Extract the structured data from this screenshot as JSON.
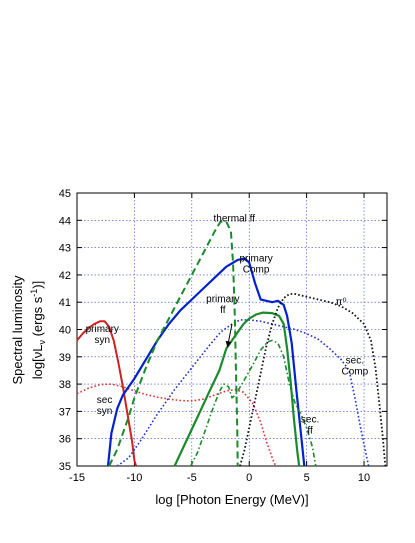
{
  "chart_data": {
    "type": "line",
    "title": "",
    "xlabel": "log [Photon Energy (MeV)]",
    "ylabel_line1": "Spectral luminosity",
    "ylabel_line2": "log[νL",
    "ylabel_sub": "ν",
    "ylabel_tail": " (ergs s",
    "ylabel_sup": "-1",
    "ylabel_end": ")]",
    "xlim": [
      -15,
      12
    ],
    "ylim": [
      35,
      45
    ],
    "xticks": [
      "-15",
      "-10",
      "-5",
      "0",
      "5",
      "10"
    ],
    "xtick_values": [
      -15,
      -10,
      -5,
      0,
      5,
      10
    ],
    "yticks": [
      "35",
      "36",
      "37",
      "38",
      "39",
      "40",
      "41",
      "42",
      "43",
      "44",
      "45"
    ],
    "ytick_values": [
      35,
      36,
      37,
      38,
      39,
      40,
      41,
      42,
      43,
      44,
      45
    ],
    "grid": true,
    "legend": "none",
    "colors": {
      "primary_syn": "#cc2222",
      "sec_syn": "#dd3333",
      "primary_comp": "#0022cc",
      "sec_comp": "#2233cc",
      "thermal_ff": "#1a8a2a",
      "primary_ff": "#1a8a2a",
      "sec_ff": "#1a8a2a",
      "pi0": "#111111"
    },
    "series": [
      {
        "key": "primary_syn",
        "style": "solid",
        "width": 2,
        "points": [
          [
            -15,
            39.6
          ],
          [
            -14.5,
            39.85
          ],
          [
            -14,
            40.05
          ],
          [
            -13.5,
            40.2
          ],
          [
            -13,
            40.3
          ],
          [
            -12.6,
            40.3
          ],
          [
            -12.2,
            40.1
          ],
          [
            -11.8,
            39.6
          ],
          [
            -11.4,
            38.8
          ],
          [
            -11,
            37.9
          ],
          [
            -10.6,
            36.9
          ],
          [
            -10.2,
            35.9
          ],
          [
            -10,
            35.2
          ],
          [
            -9.85,
            35
          ]
        ]
      },
      {
        "key": "sec_syn",
        "style": "dotted",
        "width": 1.6,
        "points": [
          [
            -15,
            37.65
          ],
          [
            -14,
            37.85
          ],
          [
            -13,
            37.98
          ],
          [
            -12,
            38.0
          ],
          [
            -11,
            37.9
          ],
          [
            -10,
            37.75
          ],
          [
            -9,
            37.62
          ],
          [
            -8,
            37.52
          ],
          [
            -7,
            37.45
          ],
          [
            -6,
            37.4
          ],
          [
            -5,
            37.38
          ],
          [
            -4,
            37.45
          ],
          [
            -3,
            37.6
          ],
          [
            -2,
            37.75
          ],
          [
            -1.2,
            37.8
          ],
          [
            -0.5,
            37.7
          ],
          [
            0.3,
            37.3
          ],
          [
            1,
            36.6
          ],
          [
            1.5,
            35.9
          ],
          [
            2,
            35.3
          ],
          [
            2.3,
            35
          ]
        ]
      },
      {
        "key": "primary_comp",
        "style": "solid",
        "width": 2.2,
        "points": [
          [
            -12.3,
            35
          ],
          [
            -12,
            36.2
          ],
          [
            -11.5,
            37.1
          ],
          [
            -11,
            37.6
          ],
          [
            -10,
            38.2
          ],
          [
            -9,
            38.9
          ],
          [
            -8,
            39.6
          ],
          [
            -7,
            40.2
          ],
          [
            -6,
            40.7
          ],
          [
            -5,
            41.1
          ],
          [
            -4,
            41.5
          ],
          [
            -3,
            41.9
          ],
          [
            -2,
            42.3
          ],
          [
            -1,
            42.55
          ],
          [
            -0.4,
            42.6
          ],
          [
            0,
            42.45
          ],
          [
            0.5,
            41.7
          ],
          [
            1,
            41.1
          ],
          [
            1.5,
            41.05
          ],
          [
            2,
            41.0
          ],
          [
            2.5,
            41.05
          ],
          [
            3,
            40.9
          ],
          [
            3.3,
            40.5
          ],
          [
            3.7,
            39.5
          ],
          [
            4.1,
            37.8
          ],
          [
            4.5,
            36.2
          ],
          [
            4.8,
            35
          ]
        ]
      },
      {
        "key": "sec_comp",
        "style": "dotted",
        "width": 1.6,
        "points": [
          [
            -11.5,
            35
          ],
          [
            -10.5,
            35.3
          ],
          [
            -9.5,
            35.9
          ],
          [
            -8,
            36.9
          ],
          [
            -6.5,
            37.8
          ],
          [
            -5,
            38.6
          ],
          [
            -3.5,
            39.4
          ],
          [
            -2.5,
            39.9
          ],
          [
            -1.5,
            40.2
          ],
          [
            -0.8,
            40.35
          ],
          [
            0,
            40.35
          ],
          [
            1,
            40.3
          ],
          [
            2,
            40.2
          ],
          [
            3,
            40.1
          ],
          [
            4,
            40.0
          ],
          [
            5,
            39.85
          ],
          [
            6,
            39.65
          ],
          [
            7,
            39.3
          ],
          [
            8,
            38.9
          ],
          [
            8.7,
            38.5
          ],
          [
            9.2,
            37.5
          ],
          [
            9.7,
            36.4
          ],
          [
            10.2,
            35.4
          ],
          [
            10.4,
            35
          ]
        ]
      },
      {
        "key": "thermal_ff",
        "style": "dashed",
        "width": 2,
        "points": [
          [
            -12.2,
            35
          ],
          [
            -11.5,
            35.6
          ],
          [
            -11,
            36.2
          ],
          [
            -10.5,
            36.8
          ],
          [
            -10,
            37.5
          ],
          [
            -9,
            38.6
          ],
          [
            -8,
            39.6
          ],
          [
            -7,
            40.4
          ],
          [
            -6,
            41.2
          ],
          [
            -5,
            42.0
          ],
          [
            -4,
            42.8
          ],
          [
            -3,
            43.6
          ],
          [
            -2.5,
            43.95
          ],
          [
            -2,
            43.95
          ],
          [
            -1.6,
            43.6
          ],
          [
            -1.4,
            42.4
          ],
          [
            -1.25,
            40.4
          ],
          [
            -1.15,
            38.4
          ],
          [
            -1.05,
            36.5
          ],
          [
            -1.0,
            35
          ]
        ]
      },
      {
        "key": "primary_ff",
        "style": "solid",
        "width": 2.2,
        "points": [
          [
            -6.5,
            35
          ],
          [
            -5.5,
            35.9
          ],
          [
            -4.5,
            36.8
          ],
          [
            -3.5,
            37.7
          ],
          [
            -2.6,
            38.5
          ],
          [
            -2.0,
            39.3
          ],
          [
            -1.5,
            39.6
          ],
          [
            -1.0,
            39.9
          ],
          [
            -0.5,
            40.2
          ],
          [
            0,
            40.4
          ],
          [
            0.6,
            40.55
          ],
          [
            1.2,
            40.62
          ],
          [
            2,
            40.6
          ],
          [
            2.6,
            40.5
          ],
          [
            3,
            40.2
          ],
          [
            3.3,
            39.3
          ],
          [
            3.6,
            38.1
          ],
          [
            3.9,
            36.7
          ],
          [
            4.2,
            35.5
          ],
          [
            4.35,
            35
          ]
        ]
      },
      {
        "key": "sec_ff",
        "style": "dashdot",
        "width": 1.6,
        "points": [
          [
            -5.1,
            35
          ],
          [
            -4.5,
            35.5
          ],
          [
            -4,
            36.1
          ],
          [
            -3.5,
            36.7
          ],
          [
            -3,
            37.3
          ],
          [
            -2.5,
            37.8
          ],
          [
            -2.2,
            38.0
          ],
          [
            -1.8,
            37.9
          ],
          [
            -1.5,
            37.5
          ],
          [
            -1.2,
            37.6
          ],
          [
            -0.5,
            38.1
          ],
          [
            0.3,
            38.7
          ],
          [
            1,
            39.25
          ],
          [
            1.6,
            39.55
          ],
          [
            2,
            39.6
          ],
          [
            2.5,
            39.5
          ],
          [
            3,
            39.0
          ],
          [
            3.5,
            38.0
          ],
          [
            4,
            37.3
          ],
          [
            4.5,
            36.9
          ],
          [
            5,
            36.4
          ],
          [
            5.5,
            35.7
          ],
          [
            5.8,
            35
          ]
        ]
      },
      {
        "key": "pi0",
        "style": "dotted",
        "width": 1.8,
        "points": [
          [
            -0.8,
            35
          ],
          [
            -0.4,
            35.6
          ],
          [
            0,
            36.4
          ],
          [
            0.5,
            37.4
          ],
          [
            1,
            38.4
          ],
          [
            1.5,
            39.4
          ],
          [
            2,
            40.2
          ],
          [
            2.5,
            40.8
          ],
          [
            3,
            41.15
          ],
          [
            3.5,
            41.3
          ],
          [
            4,
            41.3
          ],
          [
            5,
            41.2
          ],
          [
            6,
            41.1
          ],
          [
            7,
            41.0
          ],
          [
            8,
            40.85
          ],
          [
            9,
            40.6
          ],
          [
            10,
            40.2
          ],
          [
            10.6,
            39.6
          ],
          [
            11,
            38.6
          ],
          [
            11.3,
            37.4
          ],
          [
            11.6,
            36.2
          ],
          [
            11.85,
            35
          ]
        ]
      }
    ],
    "annotations": [
      {
        "key": "thermal_ff",
        "lines": [
          "thermal ff"
        ],
        "x": -1.3,
        "y": 43.95
      },
      {
        "key": "primary_comp",
        "lines": [
          "primary",
          "Comp"
        ],
        "x": 0.6,
        "y": 42.5
      },
      {
        "key": "primary_ff",
        "lines": [
          "primary",
          "ff"
        ],
        "x": -2.3,
        "y": 41.0
      },
      {
        "key": "pi0",
        "lines": [
          "π⁰"
        ],
        "x": 8.0,
        "y": 40.9
      },
      {
        "key": "primary_syn",
        "lines": [
          "primary",
          "syn"
        ],
        "x": -12.8,
        "y": 39.9
      },
      {
        "key": "sec_syn",
        "lines": [
          "sec",
          "syn"
        ],
        "x": -12.6,
        "y": 37.3
      },
      {
        "key": "sec_comp",
        "lines": [
          "sec.",
          "Comp"
        ],
        "x": 9.2,
        "y": 38.75
      },
      {
        "key": "sec_ff",
        "lines": [
          "sec.",
          "ff"
        ],
        "x": 5.3,
        "y": 36.6
      }
    ],
    "arrows": [
      {
        "key": "primary_ff_arrow",
        "from": [
          -1.5,
          40.2
        ],
        "to": [
          -1.9,
          39.35
        ]
      }
    ]
  }
}
